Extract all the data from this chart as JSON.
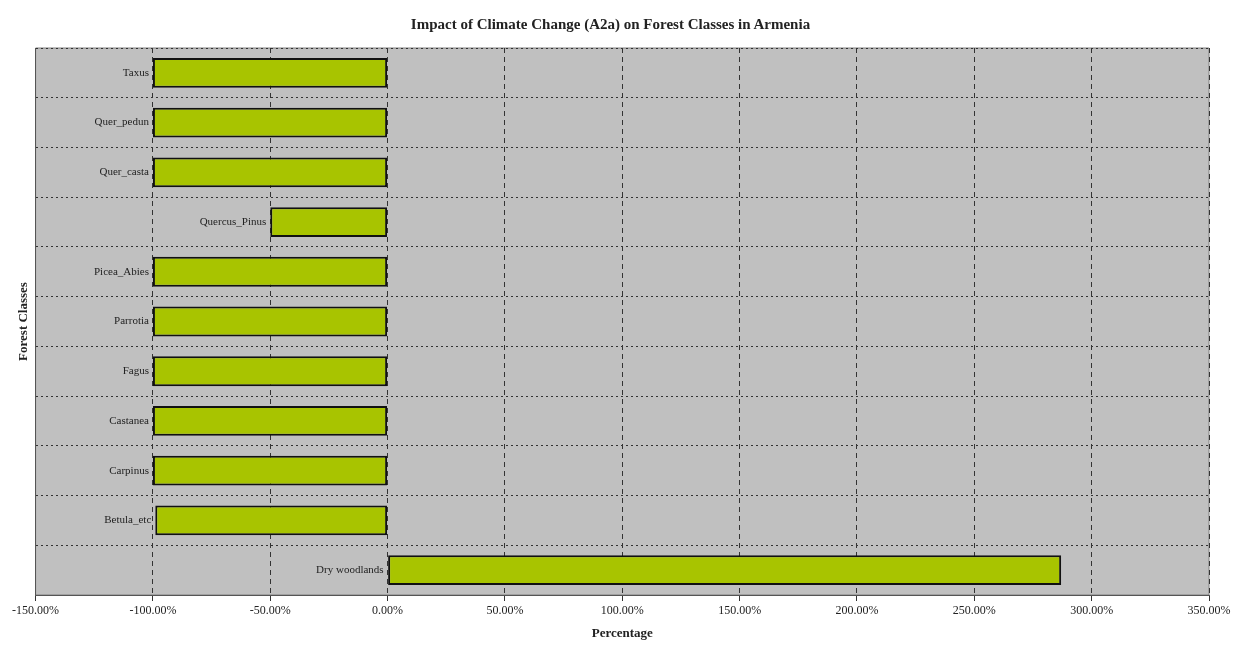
{
  "chart_data": {
    "type": "bar",
    "orientation": "horizontal",
    "title": "Impact of Climate Change (A2a) on Forest Classes in Armenia",
    "xlabel": "Percentage",
    "ylabel": "Forest Classes",
    "categories": [
      "Taxus",
      "Quer_pedun",
      "Quer_casta",
      "Quercus_Pinus",
      "Picea_Abies",
      "Parrotia",
      "Fagus",
      "Castanea",
      "Carpinus",
      "Betula_etc",
      "Dry woodlands"
    ],
    "values": [
      -100,
      -100,
      -100,
      -50,
      -100,
      -100,
      -100,
      -100,
      -100,
      -99,
      287
    ],
    "color": "#a8c400",
    "xlim": [
      -150,
      350
    ],
    "xticks": [
      {
        "value": -150,
        "label": "-150.00%"
      },
      {
        "value": -100,
        "label": "-100.00%"
      },
      {
        "value": -50,
        "label": "-50.00%"
      },
      {
        "value": 0,
        "label": "0.00%"
      },
      {
        "value": 50,
        "label": "50.00%"
      },
      {
        "value": 100,
        "label": "100.00%"
      },
      {
        "value": 150,
        "label": "150.00%"
      },
      {
        "value": 200,
        "label": "200.00%"
      },
      {
        "value": 250,
        "label": "250.00%"
      },
      {
        "value": 300,
        "label": "300.00%"
      },
      {
        "value": 350,
        "label": "350.00%"
      }
    ],
    "grid": true
  }
}
